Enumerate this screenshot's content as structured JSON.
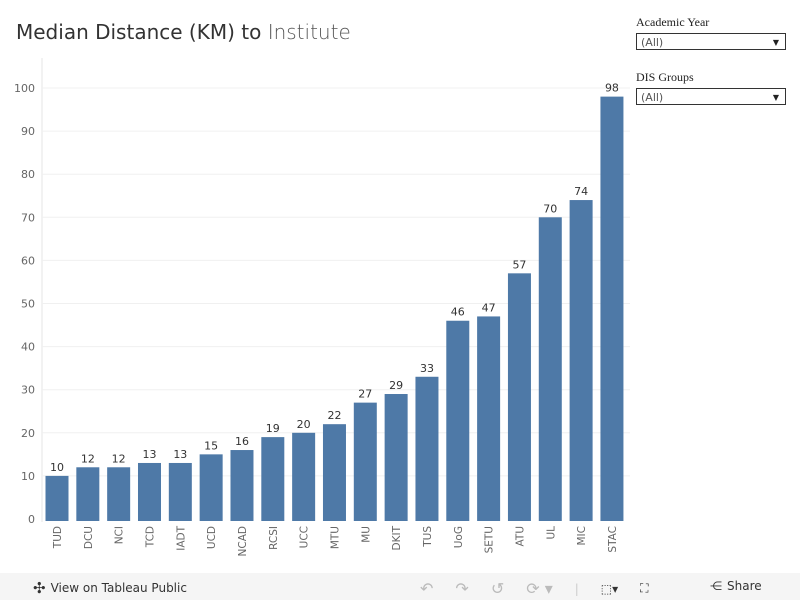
{
  "title": {
    "main": "Median Distance (KM) to",
    "light": "Institute"
  },
  "filters": [
    {
      "label": "Academic Year",
      "value": "(All)"
    },
    {
      "label": "DIS Groups",
      "value": "(All)"
    }
  ],
  "toolbar": {
    "view_label": "View on Tableau Public",
    "share_label": "Share"
  },
  "chart_data": {
    "type": "bar",
    "categories": [
      "TUD",
      "DCU",
      "NCI",
      "TCD",
      "IADT",
      "UCD",
      "NCAD",
      "RCSI",
      "UCC",
      "MTU",
      "MU",
      "DKIT",
      "TUS",
      "UoG",
      "SETU",
      "ATU",
      "UL",
      "MIC",
      "STAC"
    ],
    "values": [
      10,
      12,
      12,
      13,
      13,
      15,
      16,
      19,
      20,
      22,
      27,
      29,
      33,
      46,
      47,
      57,
      70,
      74,
      98
    ],
    "ylim": [
      0,
      100
    ],
    "yticks": [
      0,
      10,
      20,
      30,
      40,
      50,
      60,
      70,
      80,
      90,
      100
    ],
    "grid": true,
    "bar_color": "#4e79a7"
  }
}
